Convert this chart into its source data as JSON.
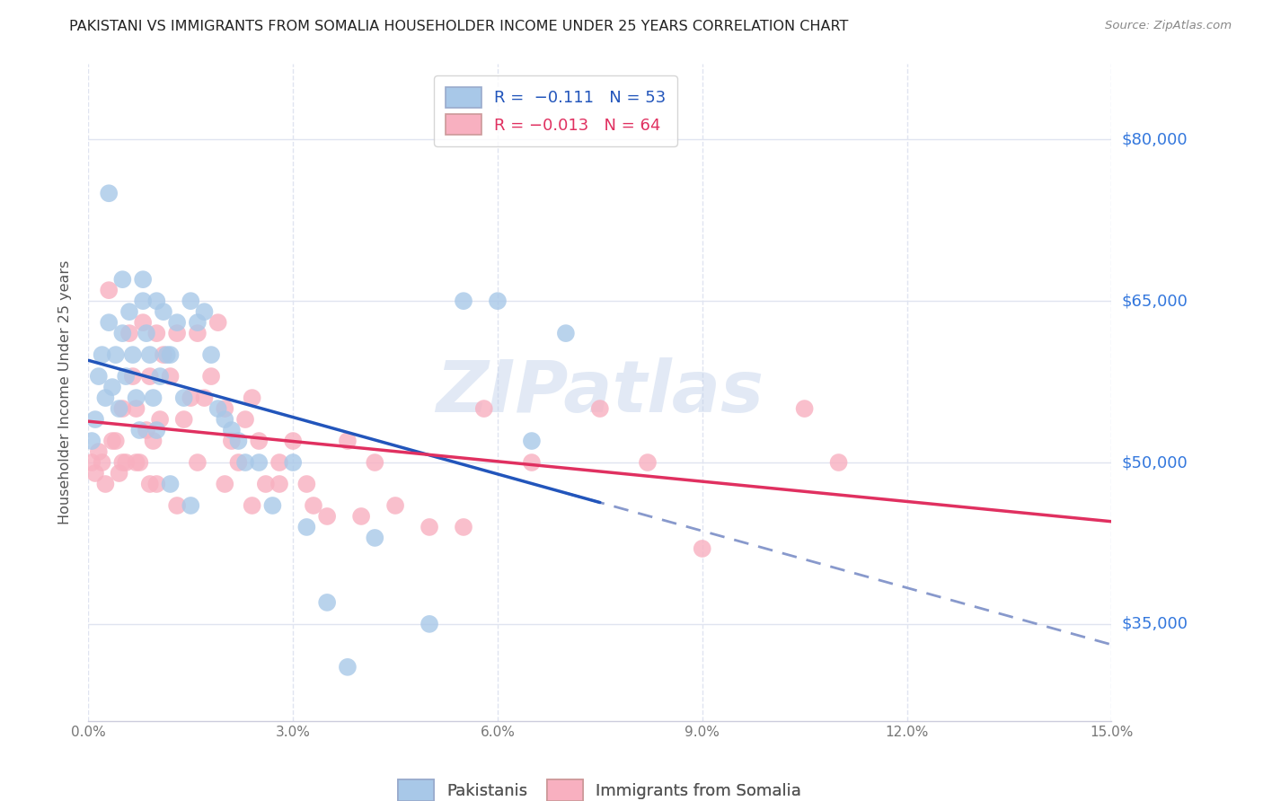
{
  "title": "PAKISTANI VS IMMIGRANTS FROM SOMALIA HOUSEHOLDER INCOME UNDER 25 YEARS CORRELATION CHART",
  "source": "Source: ZipAtlas.com",
  "xlabel_vals": [
    0.0,
    3.0,
    6.0,
    9.0,
    12.0,
    15.0
  ],
  "ylabel_ticks": [
    "$35,000",
    "$50,000",
    "$65,000",
    "$80,000"
  ],
  "ylabel_vals": [
    35000,
    50000,
    65000,
    80000
  ],
  "ylabel_label": "Householder Income Under 25 years",
  "xlim": [
    0.0,
    15.0
  ],
  "ylim": [
    26000,
    87000
  ],
  "watermark": "ZIPatlas",
  "pakistani_x": [
    0.05,
    0.1,
    0.15,
    0.2,
    0.25,
    0.3,
    0.35,
    0.4,
    0.45,
    0.5,
    0.55,
    0.6,
    0.65,
    0.7,
    0.75,
    0.8,
    0.85,
    0.9,
    0.95,
    1.0,
    1.05,
    1.1,
    1.15,
    1.2,
    1.3,
    1.4,
    1.5,
    1.6,
    1.7,
    1.8,
    1.9,
    2.0,
    2.1,
    2.2,
    2.3,
    2.5,
    2.7,
    3.0,
    3.2,
    3.5,
    3.8,
    4.2,
    5.0,
    5.5,
    6.0,
    6.5,
    7.0,
    0.3,
    0.5,
    0.8,
    1.0,
    1.2,
    1.5
  ],
  "pakistani_y": [
    52000,
    54000,
    58000,
    60000,
    56000,
    63000,
    57000,
    60000,
    55000,
    62000,
    58000,
    64000,
    60000,
    56000,
    53000,
    65000,
    62000,
    60000,
    56000,
    65000,
    58000,
    64000,
    60000,
    60000,
    63000,
    56000,
    65000,
    63000,
    64000,
    60000,
    55000,
    54000,
    53000,
    52000,
    50000,
    50000,
    46000,
    50000,
    44000,
    37000,
    31000,
    43000,
    35000,
    65000,
    65000,
    52000,
    62000,
    75000,
    67000,
    67000,
    53000,
    48000,
    46000
  ],
  "somalia_x": [
    0.05,
    0.1,
    0.15,
    0.2,
    0.25,
    0.3,
    0.35,
    0.4,
    0.45,
    0.5,
    0.55,
    0.6,
    0.65,
    0.7,
    0.75,
    0.8,
    0.85,
    0.9,
    0.95,
    1.0,
    1.05,
    1.1,
    1.2,
    1.3,
    1.4,
    1.5,
    1.6,
    1.7,
    1.8,
    1.9,
    2.0,
    2.1,
    2.2,
    2.3,
    2.4,
    2.5,
    2.6,
    2.8,
    3.0,
    3.2,
    3.5,
    3.8,
    4.0,
    4.5,
    5.0,
    5.5,
    6.5,
    7.5,
    9.0,
    10.5,
    0.5,
    0.7,
    1.0,
    1.3,
    1.6,
    2.0,
    2.4,
    2.8,
    3.3,
    4.2,
    5.8,
    8.2,
    11.0,
    0.9
  ],
  "somalia_y": [
    50000,
    49000,
    51000,
    50000,
    48000,
    66000,
    52000,
    52000,
    49000,
    55000,
    50000,
    62000,
    58000,
    55000,
    50000,
    63000,
    53000,
    58000,
    52000,
    62000,
    54000,
    60000,
    58000,
    62000,
    54000,
    56000,
    62000,
    56000,
    58000,
    63000,
    55000,
    52000,
    50000,
    54000,
    56000,
    52000,
    48000,
    50000,
    52000,
    48000,
    45000,
    52000,
    45000,
    46000,
    44000,
    44000,
    50000,
    55000,
    42000,
    55000,
    50000,
    50000,
    48000,
    46000,
    50000,
    48000,
    46000,
    48000,
    46000,
    50000,
    55000,
    50000,
    50000,
    48000
  ],
  "blue_color": "#a8c8e8",
  "pink_color": "#f8b0c0",
  "blue_line_color": "#2255bb",
  "pink_line_color": "#e03060",
  "dashed_line_color": "#8899cc",
  "grid_color": "#e0e4f0",
  "right_label_color": "#3377dd",
  "background_color": "#ffffff",
  "title_color": "#222222",
  "source_color": "#888888",
  "axis_label_color": "#555555",
  "tick_color": "#777777"
}
